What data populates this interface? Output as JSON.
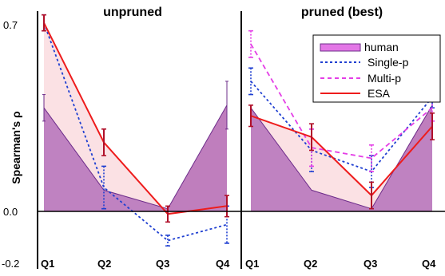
{
  "chart_data": {
    "type": "line",
    "ylabel": "Spearman's ρ",
    "categories": [
      "Q1",
      "Q2",
      "Q3",
      "Q4"
    ],
    "ylim": [
      -0.2,
      0.72
    ],
    "yticks": [
      "0.7",
      "0.0",
      "-0.2"
    ],
    "legend": {
      "position": "top-right",
      "entries": [
        "human",
        "Single-p",
        "Multi-p",
        "ESA"
      ]
    },
    "colors": {
      "human_fill": "#b46cb6",
      "human_line": "#6d2c8a",
      "band": "#fbe1e4",
      "single_p": "#1f3fd1",
      "multi_p": "#e43ee6",
      "esa": "#ee1c1c",
      "esa_errorbar": "#b0102a"
    },
    "panels": [
      {
        "title": "unpruned",
        "series": [
          {
            "name": "human",
            "values": [
              0.39,
              0.08,
              0.01,
              0.4
            ],
            "err": [
              0.05,
              0.0,
              0.0,
              0.09
            ]
          },
          {
            "name": "Single-p",
            "values": [
              0.71,
              0.09,
              -0.11,
              -0.05
            ],
            "err": [
              0.03,
              0.08,
              0.02,
              0.07
            ]
          },
          {
            "name": "ESA",
            "values": [
              0.71,
              0.26,
              -0.01,
              0.02
            ],
            "err": [
              0.03,
              0.05,
              0.03,
              0.04
            ]
          }
        ]
      },
      {
        "title": "pruned (best)",
        "series": [
          {
            "name": "human",
            "values": [
              0.39,
              0.08,
              0.01,
              0.4
            ],
            "err": [
              0.0,
              0.0,
              0.0,
              0.0
            ]
          },
          {
            "name": "Single-p",
            "values": [
              0.49,
              0.23,
              0.15,
              0.43
            ],
            "err": [
              0.05,
              0.08,
              0.06,
              0.04
            ]
          },
          {
            "name": "Multi-p",
            "values": [
              0.63,
              0.24,
              0.2,
              0.39
            ],
            "err": [
              0.05,
              0.07,
              0.05,
              0.05
            ]
          },
          {
            "name": "ESA",
            "values": [
              0.36,
              0.28,
              0.06,
              0.32
            ],
            "err": [
              0.04,
              0.05,
              0.05,
              0.05
            ]
          }
        ]
      }
    ]
  }
}
